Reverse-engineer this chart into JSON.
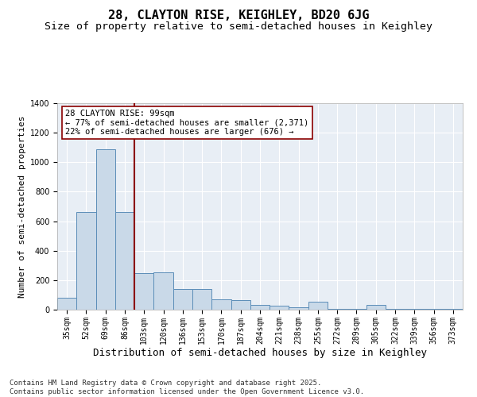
{
  "title": "28, CLAYTON RISE, KEIGHLEY, BD20 6JG",
  "subtitle": "Size of property relative to semi-detached houses in Keighley",
  "xlabel": "Distribution of semi-detached houses by size in Keighley",
  "ylabel": "Number of semi-detached properties",
  "categories": [
    "35sqm",
    "52sqm",
    "69sqm",
    "86sqm",
    "103sqm",
    "120sqm",
    "136sqm",
    "153sqm",
    "170sqm",
    "187sqm",
    "204sqm",
    "221sqm",
    "238sqm",
    "255sqm",
    "272sqm",
    "289sqm",
    "305sqm",
    "322sqm",
    "339sqm",
    "356sqm",
    "373sqm"
  ],
  "values": [
    80,
    660,
    1090,
    660,
    250,
    255,
    140,
    140,
    70,
    65,
    30,
    25,
    15,
    55,
    5,
    5,
    30,
    5,
    5,
    5,
    5
  ],
  "bar_color": "#c9d9e8",
  "bar_edge_color": "#5b8db8",
  "vline_color": "#8b0000",
  "annotation_text": "28 CLAYTON RISE: 99sqm\n← 77% of semi-detached houses are smaller (2,371)\n22% of semi-detached houses are larger (676) →",
  "annotation_box_color": "#ffffff",
  "annotation_box_edge": "#8b0000",
  "ylim": [
    0,
    1400
  ],
  "yticks": [
    0,
    200,
    400,
    600,
    800,
    1000,
    1200,
    1400
  ],
  "background_color": "#e8eef5",
  "footnote": "Contains HM Land Registry data © Crown copyright and database right 2025.\nContains public sector information licensed under the Open Government Licence v3.0.",
  "title_fontsize": 11,
  "subtitle_fontsize": 9.5,
  "xlabel_fontsize": 9,
  "ylabel_fontsize": 8,
  "tick_fontsize": 7,
  "annot_fontsize": 7.5,
  "footnote_fontsize": 6.5
}
